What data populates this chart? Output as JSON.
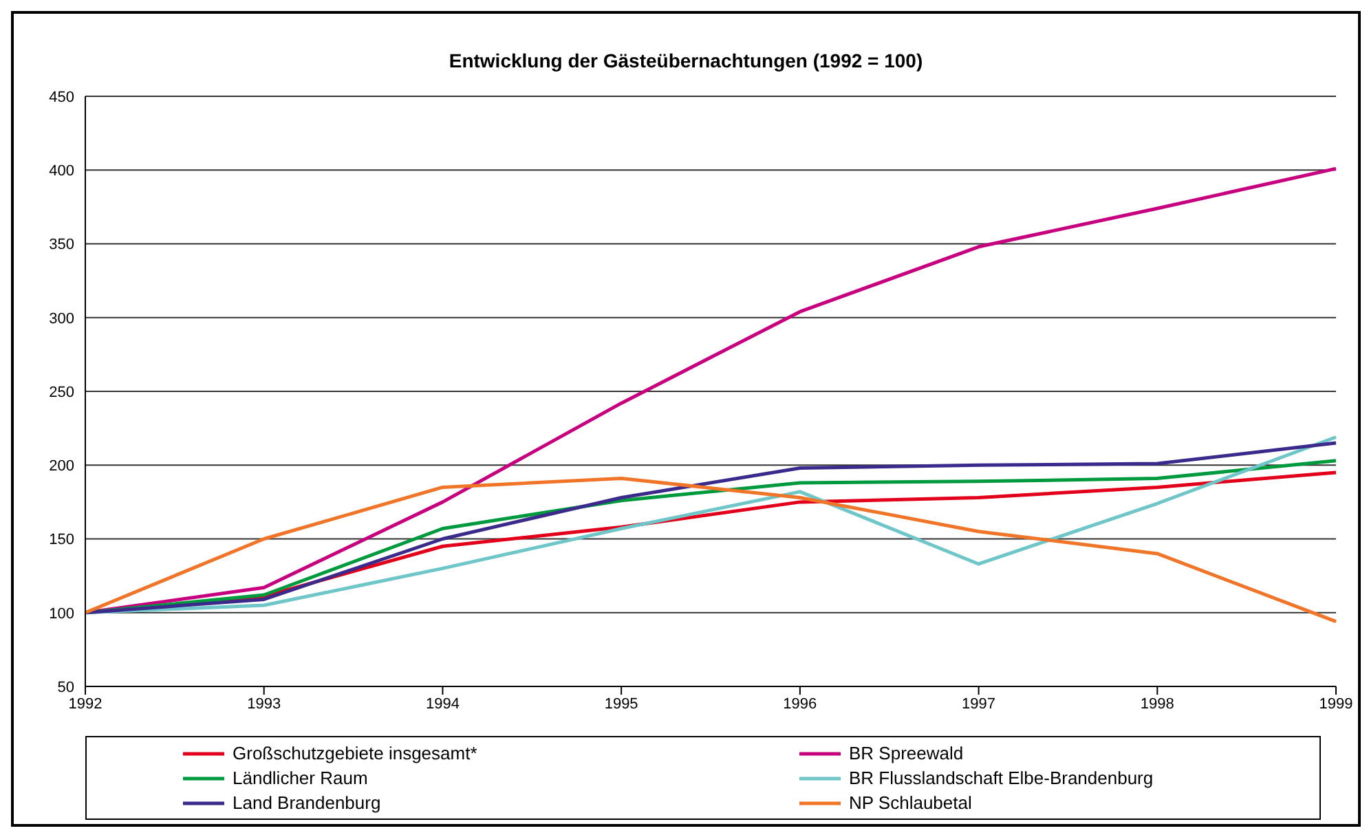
{
  "chart_data": {
    "type": "line",
    "title": "Entwicklung der Gästeübernachtungen (1992 = 100)",
    "categories": [
      "1992",
      "1993",
      "1994",
      "1995",
      "1996",
      "1997",
      "1998",
      "1999"
    ],
    "series": [
      {
        "name": "Großschutzgebiete insgesamt*",
        "color": "#e2001a",
        "values": [
          100,
          111,
          145,
          158,
          175,
          178,
          185,
          195
        ]
      },
      {
        "name": "BR Spreewald",
        "color": "#c6007e",
        "values": [
          100,
          117,
          175,
          242,
          304,
          348,
          374,
          401
        ]
      },
      {
        "name": "Ländlicher Raum",
        "color": "#009a3e",
        "values": [
          100,
          112,
          157,
          176,
          188,
          189,
          191,
          203
        ]
      },
      {
        "name": "BR Flusslandschaft Elbe-Brandenburg",
        "color": "#6ec6c8",
        "values": [
          100,
          105,
          130,
          157,
          182,
          133,
          174,
          219
        ]
      },
      {
        "name": "Land Brandenburg",
        "color": "#3b2a8c",
        "values": [
          100,
          109,
          150,
          178,
          198,
          200,
          201,
          215
        ]
      },
      {
        "name": "NP Schlaubetal",
        "color": "#f07528",
        "values": [
          100,
          150,
          185,
          191,
          178,
          155,
          140,
          94
        ]
      }
    ],
    "ylim": [
      50,
      450
    ],
    "yticks": [
      50,
      100,
      150,
      200,
      250,
      300,
      350,
      400,
      450
    ],
    "grid": "y",
    "legend": "bottom",
    "marker": "none",
    "line_style": "solid"
  }
}
